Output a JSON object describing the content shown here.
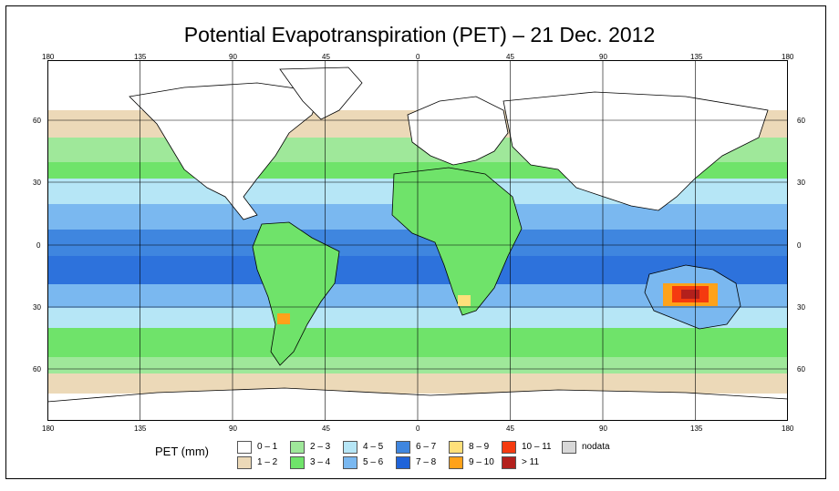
{
  "title": "Potential Evapotranspiration (PET) – 21 Dec. 2012",
  "axes": {
    "top_ticks": [
      "180",
      "135",
      "90",
      "45",
      "0",
      "45",
      "90",
      "135",
      "180"
    ],
    "bottom_ticks": [
      "180",
      "135",
      "90",
      "45",
      "0",
      "45",
      "90",
      "135",
      "180"
    ],
    "left_ticks": [
      "60",
      "30",
      "0",
      "30",
      "60"
    ],
    "right_ticks": [
      "60",
      "30",
      "0",
      "30",
      "60"
    ]
  },
  "legend": {
    "title": "PET (mm)",
    "items": [
      {
        "label": "0 – 1",
        "color": "#ffffff"
      },
      {
        "label": "1 – 2",
        "color": "#ecd9b8"
      },
      {
        "label": "2 – 3",
        "color": "#9fe89a"
      },
      {
        "label": "3 – 4",
        "color": "#6fe36a"
      },
      {
        "label": "4 – 5",
        "color": "#b6e6f6"
      },
      {
        "label": "5 – 6",
        "color": "#7ab8f0"
      },
      {
        "label": "6 – 7",
        "color": "#3f86df"
      },
      {
        "label": "7 – 8",
        "color": "#1f63d9"
      },
      {
        "label": "8 – 9",
        "color": "#ffe07a"
      },
      {
        "label": "9 – 10",
        "color": "#ffa21a"
      },
      {
        "label": "10 – 11",
        "color": "#f53a0f"
      },
      {
        "label": "> 11",
        "color": "#b3201c"
      },
      {
        "label": "nodata",
        "color": "#d8d8d8"
      }
    ]
  }
}
